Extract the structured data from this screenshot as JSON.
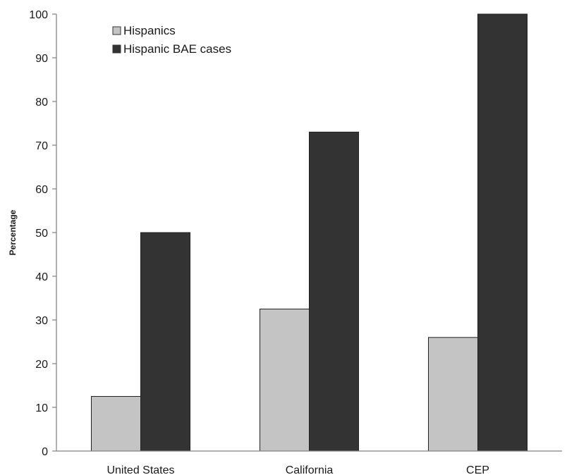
{
  "chart_data": {
    "type": "bar",
    "categories": [
      "United States",
      "California",
      "CEP"
    ],
    "series": [
      {
        "name": "Hispanics",
        "color": "#c4c4c4",
        "values": [
          12.5,
          32.5,
          26
        ]
      },
      {
        "name": "Hispanic BAE cases",
        "color": "#333333",
        "values": [
          50,
          73,
          100
        ]
      }
    ],
    "ylabel": "Percentage",
    "ylim": [
      0,
      100
    ],
    "yticks": [
      0,
      10,
      20,
      30,
      40,
      50,
      60,
      70,
      80,
      90,
      100
    ],
    "grid": false,
    "legend_position": "top-left"
  }
}
